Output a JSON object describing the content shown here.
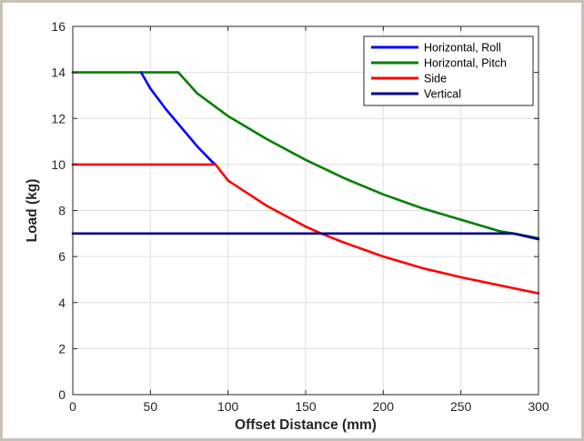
{
  "chart_data": {
    "type": "line",
    "title": "",
    "xlabel": "Offset Distance (mm)",
    "ylabel": "Load (kg)",
    "xlim": [
      0,
      300
    ],
    "ylim": [
      0,
      16
    ],
    "xticks": [
      0,
      50,
      100,
      150,
      200,
      250,
      300
    ],
    "yticks": [
      0,
      2,
      4,
      6,
      8,
      10,
      12,
      14,
      16
    ],
    "grid": true,
    "legend_position": "top-right",
    "series": [
      {
        "name": "Horizontal, Roll",
        "color": "#0000ff",
        "points": [
          [
            44,
            14.0
          ],
          [
            50,
            13.3
          ],
          [
            60,
            12.4
          ],
          [
            70,
            11.6
          ],
          [
            80,
            10.8
          ],
          [
            90,
            10.1
          ],
          [
            92,
            10.0
          ]
        ]
      },
      {
        "name": "Horizontal, Pitch",
        "color": "#008000",
        "points": [
          [
            0,
            14.0
          ],
          [
            68,
            14.0
          ],
          [
            80,
            13.1
          ],
          [
            100,
            12.1
          ],
          [
            125,
            11.1
          ],
          [
            150,
            10.2
          ],
          [
            175,
            9.4
          ],
          [
            200,
            8.7
          ],
          [
            225,
            8.1
          ],
          [
            250,
            7.6
          ],
          [
            275,
            7.1
          ],
          [
            284,
            7.0
          ],
          [
            300,
            6.8
          ]
        ]
      },
      {
        "name": "Side",
        "color": "#ff0000",
        "points": [
          [
            0,
            10.0
          ],
          [
            92,
            10.0
          ],
          [
            100,
            9.3
          ],
          [
            125,
            8.2
          ],
          [
            150,
            7.3
          ],
          [
            160,
            7.0
          ],
          [
            175,
            6.6
          ],
          [
            200,
            6.0
          ],
          [
            225,
            5.5
          ],
          [
            250,
            5.1
          ],
          [
            275,
            4.75
          ],
          [
            300,
            4.4
          ]
        ]
      },
      {
        "name": "Vertical",
        "color": "#00008b",
        "points": [
          [
            0,
            7.0
          ],
          [
            284,
            7.0
          ],
          [
            300,
            6.75
          ]
        ]
      }
    ]
  }
}
